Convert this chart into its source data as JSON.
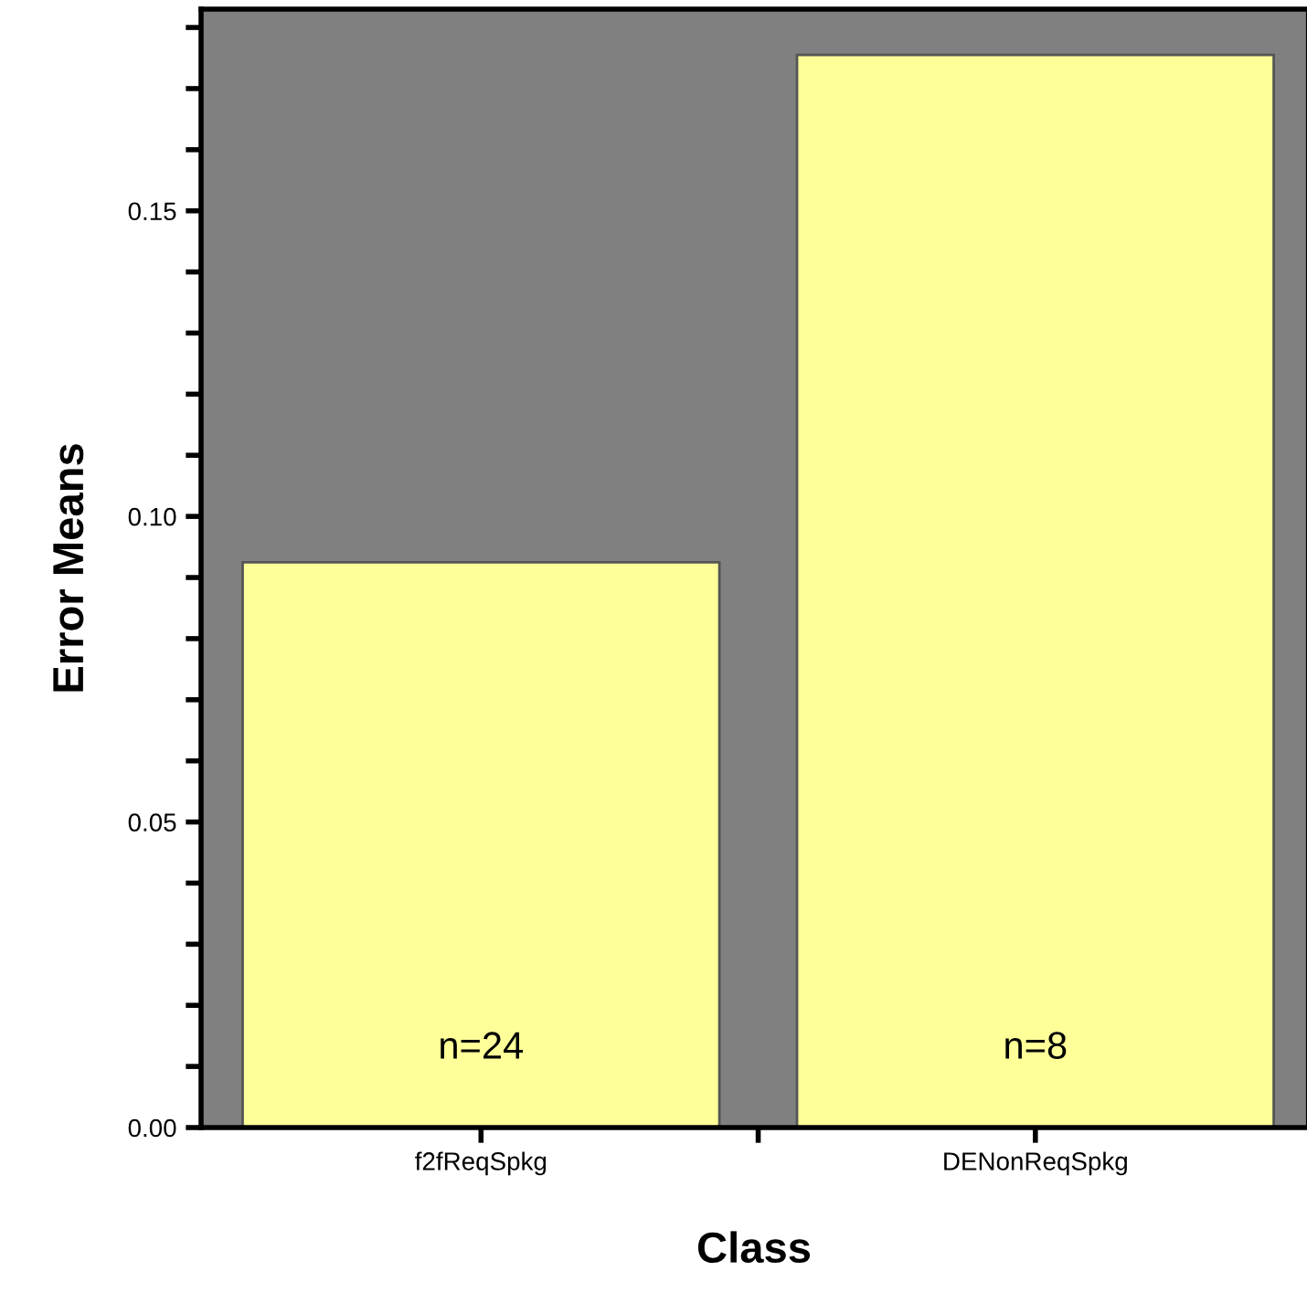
{
  "chart_data": {
    "type": "bar",
    "xlabel": "Class",
    "ylabel": "Error Means",
    "categories": [
      "f2fReqSpkg",
      "DENonReqSpkg"
    ],
    "values": [
      0.0925,
      0.1755
    ],
    "color": "#ffff99",
    "ylim": [
      0,
      0.183
    ],
    "yticks": [
      {
        "value": 0,
        "label": "0.00"
      },
      {
        "value": 0.01,
        "label": null
      },
      {
        "value": 0.02,
        "label": null
      },
      {
        "value": 0.03,
        "label": null
      },
      {
        "value": 0.04,
        "label": null
      },
      {
        "value": 0.05,
        "label": "0.05"
      },
      {
        "value": 0.06,
        "label": null
      },
      {
        "value": 0.07,
        "label": null
      },
      {
        "value": 0.08,
        "label": null
      },
      {
        "value": 0.09,
        "label": null
      },
      {
        "value": 0.1,
        "label": "0.10"
      },
      {
        "value": 0.11,
        "label": null
      },
      {
        "value": 0.12,
        "label": null
      },
      {
        "value": 0.13,
        "label": null
      },
      {
        "value": 0.14,
        "label": null
      },
      {
        "value": 0.15,
        "label": "0.15"
      },
      {
        "value": 0.16,
        "label": null
      },
      {
        "value": 0.17,
        "label": null
      },
      {
        "value": 0.18,
        "label": null
      }
    ],
    "annotations": [
      "n=24",
      "n=8"
    ],
    "grid": false,
    "legend": false
  }
}
